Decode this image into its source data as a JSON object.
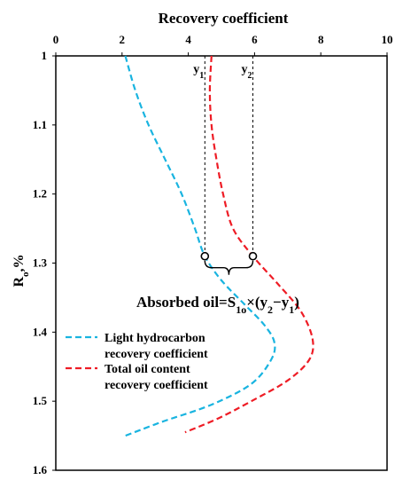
{
  "chart_data": {
    "type": "line",
    "title": "Recovery coefficient",
    "xlabel": "Recovery coefficient",
    "ylabel_main": "R",
    "ylabel_sub": "o",
    "ylabel_unit": ",%",
    "x_axis_position": "top",
    "y_axis_inverted": true,
    "xlim": [
      0,
      10
    ],
    "ylim": [
      1.0,
      1.6
    ],
    "x_ticks": [
      0,
      2,
      4,
      6,
      8,
      10
    ],
    "y_ticks": [
      1,
      1.1,
      1.2,
      1.3,
      1.4,
      1.5,
      1.6
    ],
    "grid": false,
    "legend_position": "lower-left",
    "series": [
      {
        "name_line1": "Light hydrocarbon",
        "name_line2": "recovery coefficient",
        "color": "#19b4e0",
        "dash": "dashed",
        "points": [
          [
            2.1,
            1.0
          ],
          [
            2.4,
            1.05
          ],
          [
            2.8,
            1.1
          ],
          [
            3.3,
            1.15
          ],
          [
            3.8,
            1.2
          ],
          [
            4.2,
            1.25
          ],
          [
            4.5,
            1.29
          ],
          [
            5.0,
            1.325
          ],
          [
            5.7,
            1.36
          ],
          [
            6.3,
            1.39
          ],
          [
            6.6,
            1.415
          ],
          [
            6.5,
            1.44
          ],
          [
            5.9,
            1.475
          ],
          [
            4.7,
            1.505
          ],
          [
            3.2,
            1.53
          ],
          [
            2.1,
            1.55
          ]
        ]
      },
      {
        "name_line1": "Total oil content",
        "name_line2": "recovery coefficient",
        "color": "#ee1c25",
        "dash": "dashed",
        "points": [
          [
            4.7,
            1.0
          ],
          [
            4.65,
            1.05
          ],
          [
            4.7,
            1.1
          ],
          [
            4.85,
            1.15
          ],
          [
            5.05,
            1.2
          ],
          [
            5.35,
            1.25
          ],
          [
            5.95,
            1.29
          ],
          [
            6.7,
            1.33
          ],
          [
            7.4,
            1.37
          ],
          [
            7.75,
            1.41
          ],
          [
            7.65,
            1.44
          ],
          [
            7.0,
            1.47
          ],
          [
            5.9,
            1.5
          ],
          [
            4.9,
            1.525
          ],
          [
            3.9,
            1.545
          ]
        ]
      }
    ],
    "markers": [
      {
        "label": "y",
        "sub": "1",
        "x": 4.5,
        "y": 1.29
      },
      {
        "label": "y",
        "sub": "2",
        "x": 5.95,
        "y": 1.29
      }
    ],
    "annotation": {
      "prefix": "Absorbed oil=S",
      "sub1": "1o",
      "mid": "×(y",
      "sub2": "2",
      "mid2": "−y",
      "sub3": "1",
      "suffix": ")"
    }
  }
}
